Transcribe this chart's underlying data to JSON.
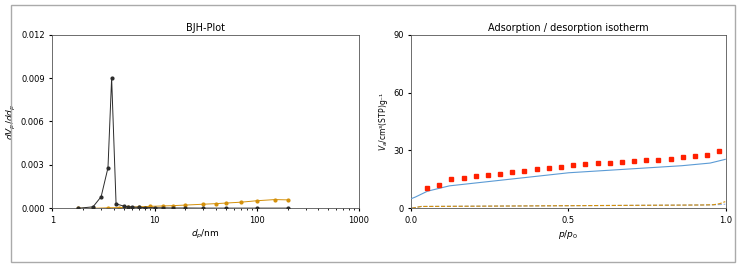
{
  "bjh_title": "BJH-Plot",
  "bjh_xlabel": "$d_p$/nm",
  "bjh_ylabel": "$dV_p$/$dd_p$",
  "bjh_xlim": [
    1,
    1000
  ],
  "bjh_ylim": [
    0,
    0.012
  ],
  "bjh_yticks": [
    0,
    0.003,
    0.006,
    0.009,
    0.012
  ],
  "iso_title": "Adsorption / desorption isotherm",
  "iso_xlabel": "$p$/$p_0$",
  "iso_ylabel": "$V_a$/cm³(STP)g⁻¹",
  "iso_xlim": [
    0,
    1.0
  ],
  "iso_ylim": [
    0,
    90
  ],
  "iso_yticks": [
    0,
    30,
    60,
    90
  ],
  "color_new": "#2b2b2b",
  "color_spent": "#d4900a",
  "color_ads": "#5b9bd5",
  "color_des": "#ff2000",
  "color_ads_spent": "#8faadc",
  "color_des_spent": "#d4900a",
  "outer_bg": "#f0f0eb"
}
